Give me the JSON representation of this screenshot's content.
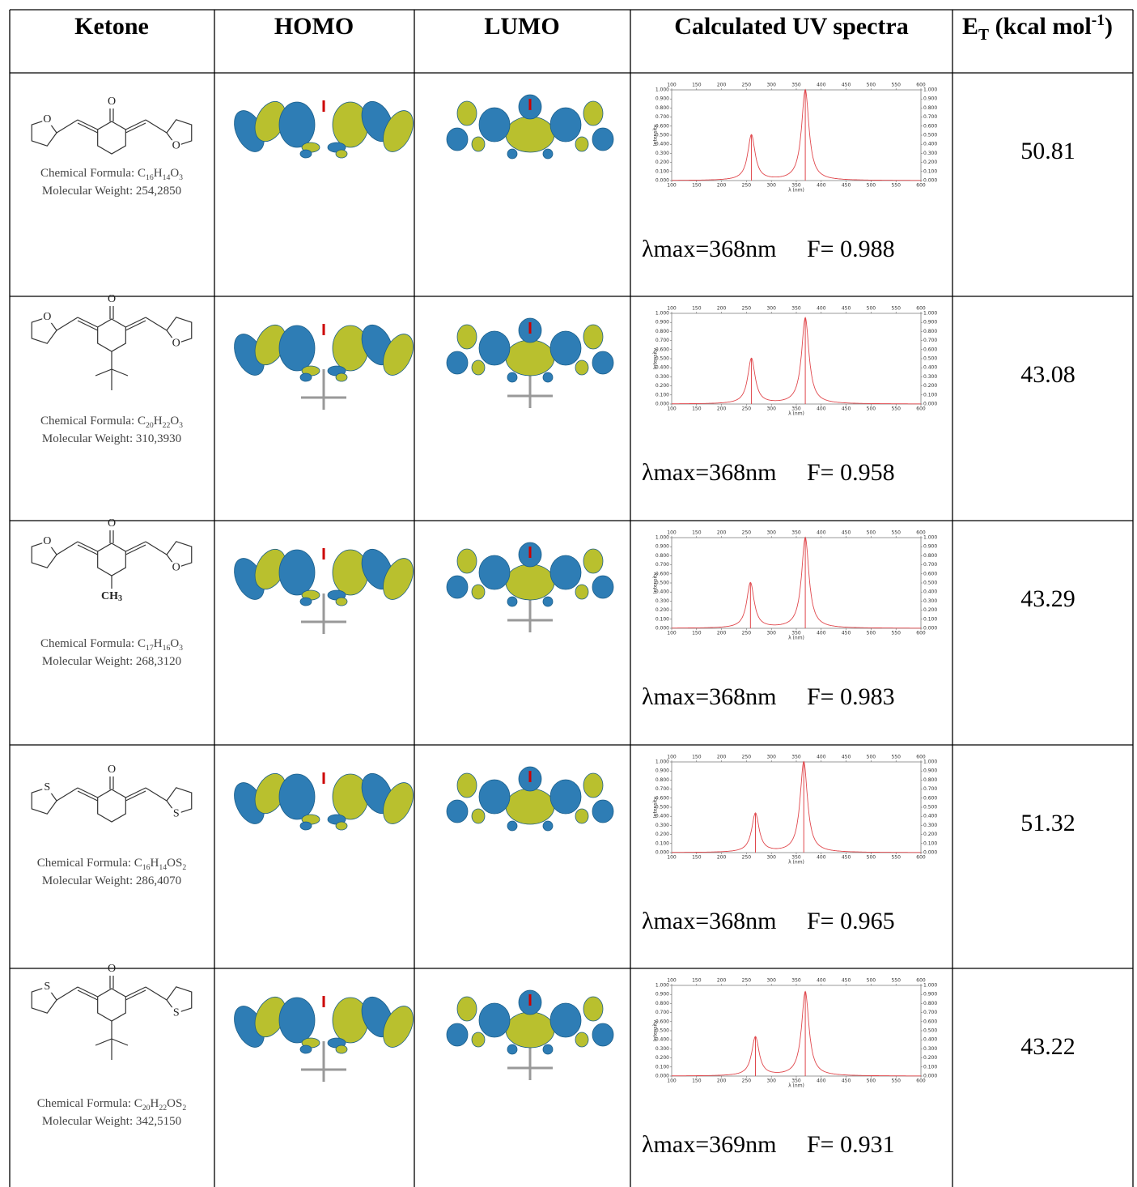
{
  "header": {
    "ketone": "Ketone",
    "homo": "HOMO",
    "lumo": "LUMO",
    "uv": "Calculated UV spectra",
    "et": [
      "E",
      "T",
      " (kcal mol",
      "-1",
      ")"
    ]
  },
  "spectrum_axes": {
    "xlim": [
      100,
      600
    ],
    "xticks": [
      100,
      150,
      200,
      250,
      300,
      350,
      400,
      450,
      500,
      550,
      600
    ],
    "ylim": [
      0,
      1
    ],
    "yticks": [
      {
        "value": 0,
        "label": "0.000"
      },
      {
        "value": 0.1,
        "label": "0.100"
      },
      {
        "value": 0.2,
        "label": "0.200"
      },
      {
        "value": 0.3,
        "label": "0.300"
      },
      {
        "value": 0.4,
        "label": "0.400"
      },
      {
        "value": 0.5,
        "label": "0.500"
      },
      {
        "value": 0.6,
        "label": "0.600"
      },
      {
        "value": 0.7,
        "label": "0.700"
      },
      {
        "value": 0.8,
        "label": "0.800"
      },
      {
        "value": 0.9,
        "label": "0.900"
      },
      {
        "value": 1,
        "label": "1.000"
      }
    ],
    "xlabel": "λ (nm)",
    "ylabel": "Intensity"
  },
  "rows": [
    {
      "carbonyl": "O",
      "left_atom": "O",
      "right_atom": "O",
      "formula_label": "Chemical Formula: ",
      "formula": [
        "C",
        "16",
        "H",
        "14",
        "O",
        "3"
      ],
      "weight": "Molecular Weight: 254,2850",
      "spectrum": {
        "peaks": [
          {
            "x": 260,
            "y": 0.5
          },
          {
            "x": 368,
            "y": 1.0
          }
        ]
      },
      "lambda_max": "λmax=368nm",
      "f": "F= 0.988",
      "et": "50.81"
    },
    {
      "carbonyl": "O",
      "left_atom": "O",
      "right_atom": "O",
      "formula_label": "Chemical Formula: ",
      "formula": [
        "C",
        "20",
        "H",
        "22",
        "O",
        "3"
      ],
      "weight": "Molecular Weight: 310,3930",
      "spectrum": {
        "peaks": [
          {
            "x": 260,
            "y": 0.5
          },
          {
            "x": 368,
            "y": 0.95
          }
        ]
      },
      "lambda_max": "λmax=368nm",
      "f": "F= 0.958",
      "et": "43.08"
    },
    {
      "carbonyl": "O",
      "left_atom": "O",
      "right_atom": "O",
      "substituent": [
        "CH",
        "3"
      ],
      "formula_label": "Chemical Formula: ",
      "formula": [
        "C",
        "17",
        "H",
        "16",
        "O",
        "3"
      ],
      "weight": "Molecular Weight: 268,3120",
      "spectrum": {
        "peaks": [
          {
            "x": 258,
            "y": 0.5
          },
          {
            "x": 368,
            "y": 1.0
          }
        ]
      },
      "lambda_max": "λmax=368nm",
      "f": "F= 0.983",
      "et": "43.29"
    },
    {
      "carbonyl": "O",
      "left_atom": "S",
      "right_atom": "S",
      "formula_label": "Chemical Formula: ",
      "formula": [
        "C",
        "16",
        "H",
        "14",
        "OS",
        "2"
      ],
      "weight": "Molecular Weight: 286,4070",
      "spectrum": {
        "peaks": [
          {
            "x": 268,
            "y": 0.43
          },
          {
            "x": 365,
            "y": 1.0
          }
        ]
      },
      "lambda_max": "λmax=368nm",
      "f": "F= 0.965",
      "et": "51.32"
    },
    {
      "carbonyl": "O",
      "left_atom": "S",
      "right_atom": "S",
      "formula_label": "Chemical Formula: ",
      "formula": [
        "C",
        "20",
        "H",
        "22",
        "OS",
        "2"
      ],
      "weight": "Molecular Weight: 342,5150",
      "spectrum": {
        "peaks": [
          {
            "x": 268,
            "y": 0.43
          },
          {
            "x": 368,
            "y": 0.93
          }
        ]
      },
      "lambda_max": "λmax=369nm",
      "f": "F= 0.931",
      "et": "43.22"
    }
  ]
}
